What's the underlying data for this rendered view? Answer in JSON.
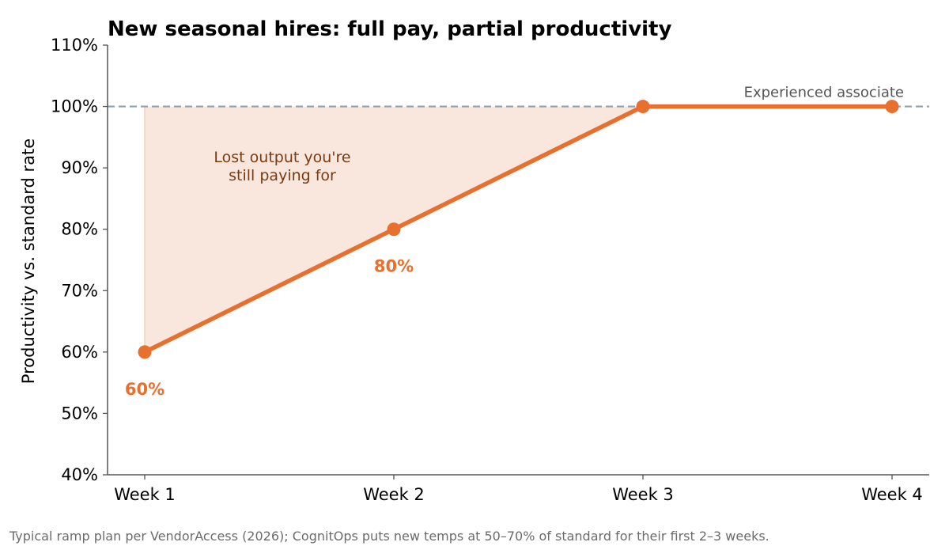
{
  "chart_data": {
    "type": "line",
    "title": "New seasonal hires: full pay, partial productivity",
    "xlabel": "",
    "ylabel": "Productivity vs. standard rate",
    "categories": [
      "Week 1",
      "Week 2",
      "Week 3",
      "Week 4"
    ],
    "series": [
      {
        "values": [
          60,
          80,
          100,
          100
        ]
      }
    ],
    "ylim": [
      40,
      110
    ],
    "yticks": [
      40,
      50,
      60,
      70,
      80,
      90,
      100,
      110
    ],
    "ytick_labels": [
      "40%",
      "50%",
      "60%",
      "70%",
      "80%",
      "90%",
      "100%",
      "110%"
    ],
    "reference_line": {
      "value": 100,
      "label": "Experienced associate"
    },
    "shaded_region_label": "Lost output you're still paying for",
    "data_labels": [
      {
        "category": "Week 1",
        "text": "60%"
      },
      {
        "category": "Week 2",
        "text": "80%"
      }
    ],
    "grid": false,
    "legend": "none",
    "colors": {
      "line": "#e8702e",
      "shade": "#f9e6dc",
      "reference": "#8fa0b3"
    }
  },
  "source_note": "Typical ramp plan per VendorAccess (2026); CognitOps puts new temps at 50–70% of standard for their first 2–3 weeks."
}
